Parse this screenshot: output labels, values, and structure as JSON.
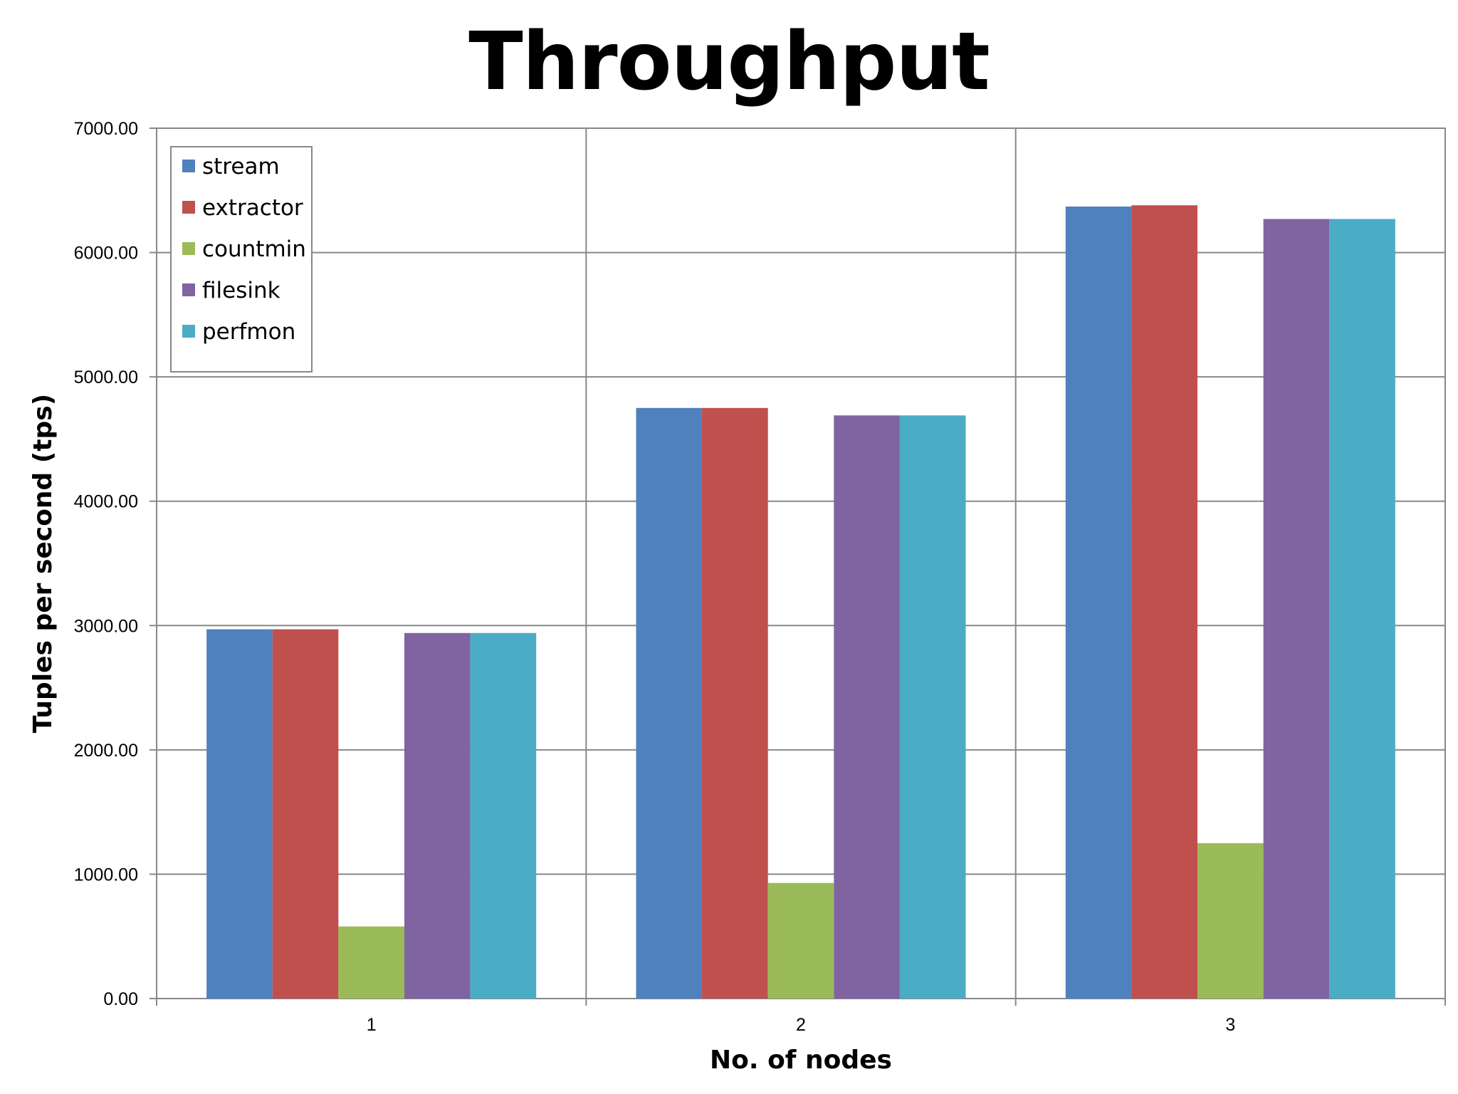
{
  "chart_data": {
    "type": "bar",
    "title": "Throughput",
    "xlabel": "No. of nodes",
    "ylabel": "Tuples per second (tps)",
    "categories": [
      "1",
      "2",
      "3"
    ],
    "ylim": [
      0,
      7000
    ],
    "yticks": [
      0,
      1000,
      2000,
      3000,
      4000,
      5000,
      6000,
      7000
    ],
    "ytick_labels": [
      "0.00",
      "1000.00",
      "2000.00",
      "3000.00",
      "4000.00",
      "5000.00",
      "6000.00",
      "7000.00"
    ],
    "grid": true,
    "legend_position": "top-left",
    "series": [
      {
        "name": "stream",
        "color": "#4F81BD",
        "values": [
          2970,
          4750,
          6370
        ]
      },
      {
        "name": "extractor",
        "color": "#C0504D",
        "values": [
          2970,
          4750,
          6380
        ]
      },
      {
        "name": "countmin",
        "color": "#9BBB59",
        "values": [
          580,
          930,
          1250
        ]
      },
      {
        "name": "filesink",
        "color": "#8064A2",
        "values": [
          2940,
          4690,
          6270
        ]
      },
      {
        "name": "perfmon",
        "color": "#4BACC6",
        "values": [
          2940,
          4690,
          6270
        ]
      }
    ]
  }
}
